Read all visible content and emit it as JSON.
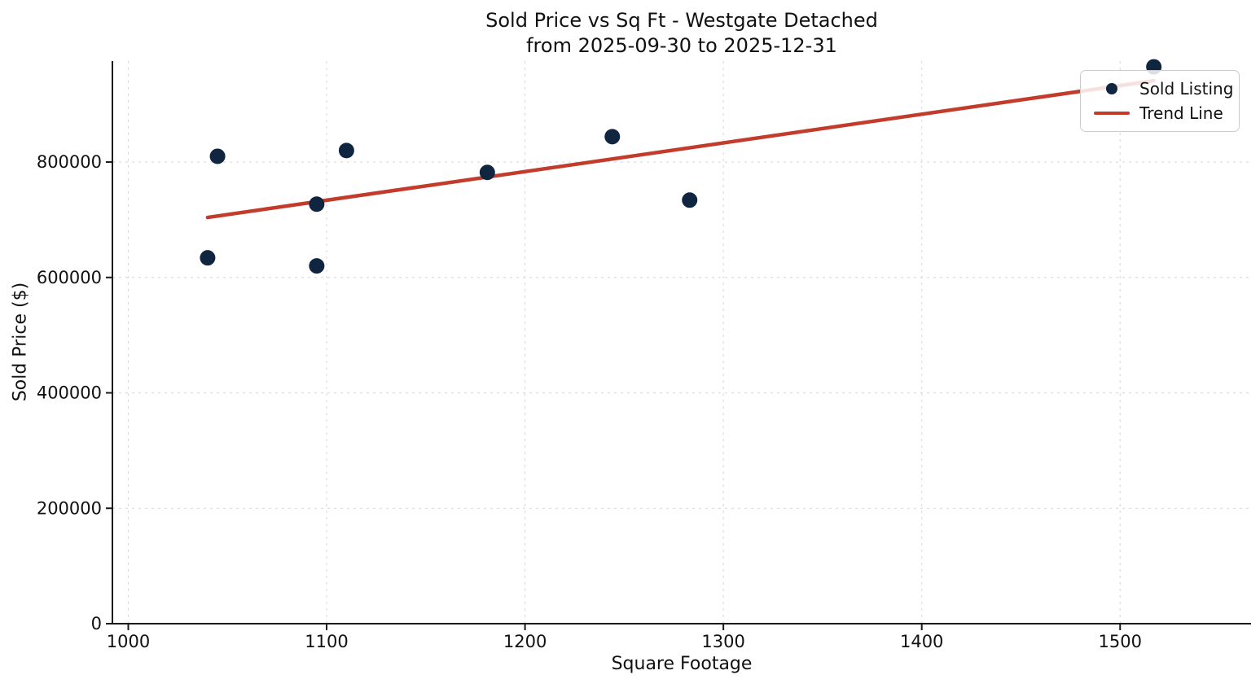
{
  "figure": {
    "title_line1": "Sold Price vs Sq Ft - Westgate Detached",
    "title_line2": "from 2025-09-30 to 2025-12-31",
    "xlabel": "Square Footage",
    "ylabel": "Sold Price ($)"
  },
  "legend": {
    "items": [
      {
        "label": "Sold Listing",
        "marker": "dot",
        "color": "#10253f"
      },
      {
        "label": "Trend Line",
        "marker": "line",
        "color": "#c23b2b"
      }
    ]
  },
  "colors": {
    "scatter_point": "#10253f",
    "trend_line": "#c23b2b",
    "grid_line": "#dcdcdc",
    "spine": "#1a1a1a",
    "tick_text": "#111111"
  },
  "chart_data": {
    "type": "scatter",
    "title": "Sold Price vs Sq Ft - Westgate Detached\nfrom 2025-09-30 to 2025-12-31",
    "xlabel": "Square Footage",
    "ylabel": "Sold Price ($)",
    "xlim": [
      992,
      1566
    ],
    "ylim": [
      0,
      975000
    ],
    "x_ticks": [
      1000,
      1100,
      1200,
      1300,
      1400,
      1500
    ],
    "y_ticks": [
      0,
      200000,
      400000,
      600000,
      800000
    ],
    "grid": true,
    "legend_position": "upper right",
    "series": [
      {
        "name": "Sold Listing",
        "type": "scatter",
        "color": "#10253f",
        "marker_radius": 9.5,
        "points": [
          {
            "sqft": 1040,
            "price": 634000
          },
          {
            "sqft": 1045,
            "price": 810000
          },
          {
            "sqft": 1095,
            "price": 620000
          },
          {
            "sqft": 1095,
            "price": 727000
          },
          {
            "sqft": 1110,
            "price": 820000
          },
          {
            "sqft": 1181,
            "price": 782000
          },
          {
            "sqft": 1244,
            "price": 844000
          },
          {
            "sqft": 1283,
            "price": 734000
          },
          {
            "sqft": 1517,
            "price": 965000
          }
        ]
      },
      {
        "name": "Trend Line",
        "type": "line",
        "color": "#c23b2b",
        "line_width": 4.5,
        "points": [
          {
            "sqft": 1040,
            "price": 704000
          },
          {
            "sqft": 1517,
            "price": 941000
          }
        ]
      }
    ]
  }
}
